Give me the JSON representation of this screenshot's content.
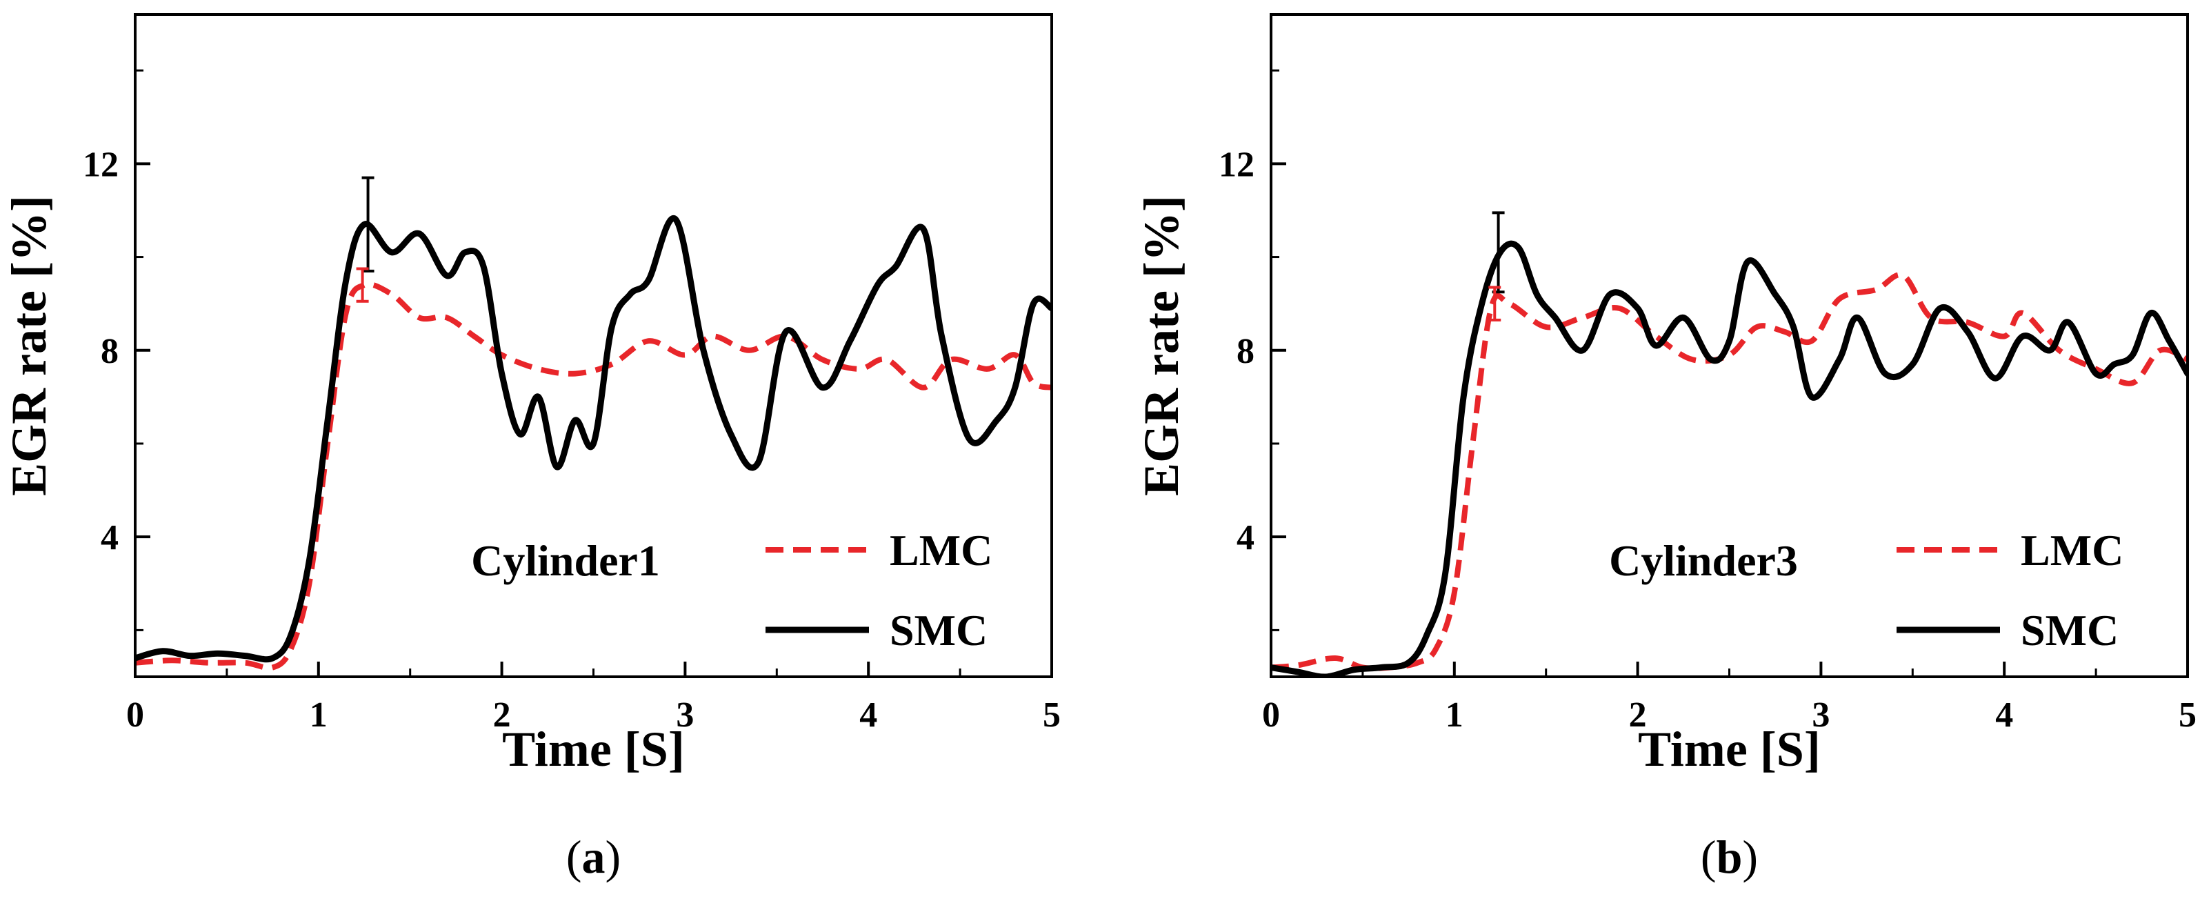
{
  "chart_data": [
    {
      "type": "line",
      "panel_label": "a",
      "annotation": "Cylinder1",
      "xlabel": "Time [S]",
      "ylabel": "EGR rate [%]",
      "xlim": [
        0,
        5
      ],
      "ylim": [
        1,
        15.2
      ],
      "xticks": [
        0,
        1,
        2,
        3,
        4,
        5
      ],
      "yticks": [
        4,
        8,
        12
      ],
      "grid": false,
      "legend_position": "bottom-right",
      "series": [
        {
          "name": "LMC",
          "color": "#e8262a",
          "style": "dashed",
          "x": [
            0,
            0.2,
            0.4,
            0.6,
            0.75,
            0.85,
            0.95,
            1.05,
            1.15,
            1.25,
            1.4,
            1.55,
            1.7,
            1.85,
            2.0,
            2.2,
            2.4,
            2.6,
            2.8,
            3.0,
            3.15,
            3.35,
            3.55,
            3.75,
            3.95,
            4.1,
            4.3,
            4.45,
            4.65,
            4.8,
            4.9,
            5.0
          ],
          "y": [
            1.3,
            1.35,
            1.3,
            1.3,
            1.2,
            1.6,
            3.0,
            6.0,
            8.8,
            9.4,
            9.2,
            8.7,
            8.7,
            8.3,
            7.9,
            7.6,
            7.5,
            7.7,
            8.2,
            7.9,
            8.3,
            8.0,
            8.3,
            7.8,
            7.6,
            7.8,
            7.2,
            7.8,
            7.6,
            7.9,
            7.3,
            7.2
          ]
        },
        {
          "name": "SMC",
          "color": "#000000",
          "style": "solid",
          "x": [
            0,
            0.15,
            0.3,
            0.45,
            0.6,
            0.75,
            0.85,
            0.95,
            1.05,
            1.15,
            1.25,
            1.4,
            1.55,
            1.7,
            1.8,
            1.9,
            2.0,
            2.1,
            2.2,
            2.3,
            2.4,
            2.5,
            2.6,
            2.7,
            2.8,
            2.95,
            3.1,
            3.25,
            3.4,
            3.55,
            3.75,
            3.9,
            4.05,
            4.15,
            4.3,
            4.4,
            4.55,
            4.7,
            4.8,
            4.9,
            5.0
          ],
          "y": [
            1.4,
            1.55,
            1.45,
            1.5,
            1.45,
            1.4,
            1.9,
            3.5,
            6.5,
            9.5,
            10.7,
            10.1,
            10.5,
            9.6,
            10.1,
            9.8,
            7.5,
            6.2,
            7.0,
            5.5,
            6.5,
            6.0,
            8.5,
            9.2,
            9.5,
            10.8,
            8.0,
            6.2,
            5.6,
            8.4,
            7.2,
            8.2,
            9.4,
            9.8,
            10.6,
            8.3,
            6.1,
            6.5,
            7.2,
            9.0,
            8.9
          ]
        }
      ],
      "error_bars": [
        {
          "series": "SMC",
          "x": 1.27,
          "y": 10.7,
          "error": 1.0
        },
        {
          "series": "LMC",
          "x": 1.24,
          "y": 9.4,
          "error": 0.35
        }
      ]
    },
    {
      "type": "line",
      "panel_label": "b",
      "annotation": "Cylinder3",
      "xlabel": "Time [S]",
      "ylabel": "EGR rate [%]",
      "xlim": [
        0,
        5
      ],
      "ylim": [
        1,
        15.2
      ],
      "xticks": [
        0,
        1,
        2,
        3,
        4,
        5
      ],
      "yticks": [
        4,
        8,
        12
      ],
      "grid": false,
      "legend_position": "bottom-right",
      "series": [
        {
          "name": "LMC",
          "color": "#e8262a",
          "style": "dashed",
          "x": [
            0,
            0.15,
            0.35,
            0.5,
            0.65,
            0.8,
            0.9,
            1.0,
            1.1,
            1.2,
            1.3,
            1.5,
            1.7,
            1.9,
            2.1,
            2.3,
            2.5,
            2.65,
            2.8,
            2.95,
            3.1,
            3.3,
            3.45,
            3.6,
            3.8,
            4.0,
            4.1,
            4.3,
            4.5,
            4.7,
            4.85,
            5.0
          ],
          "y": [
            1.2,
            1.25,
            1.4,
            1.2,
            1.2,
            1.3,
            1.6,
            2.8,
            6.0,
            8.9,
            9.0,
            8.5,
            8.7,
            8.9,
            8.3,
            7.8,
            7.9,
            8.5,
            8.4,
            8.2,
            9.1,
            9.3,
            9.6,
            8.7,
            8.6,
            8.3,
            8.8,
            8.0,
            7.6,
            7.3,
            8.0,
            7.8
          ]
        },
        {
          "name": "SMC",
          "color": "#000000",
          "style": "solid",
          "x": [
            0,
            0.15,
            0.3,
            0.45,
            0.6,
            0.75,
            0.85,
            0.95,
            1.05,
            1.15,
            1.25,
            1.35,
            1.45,
            1.55,
            1.7,
            1.85,
            2.0,
            2.1,
            2.25,
            2.4,
            2.5,
            2.6,
            2.75,
            2.85,
            2.95,
            3.1,
            3.2,
            3.35,
            3.5,
            3.65,
            3.8,
            3.95,
            4.1,
            4.25,
            4.35,
            4.5,
            4.6,
            4.7,
            4.8,
            4.9,
            5.0
          ],
          "y": [
            1.2,
            1.1,
            1.0,
            1.15,
            1.2,
            1.3,
            1.9,
            3.2,
            7.0,
            9.0,
            10.1,
            10.2,
            9.2,
            8.7,
            8.0,
            9.2,
            8.9,
            8.1,
            8.7,
            7.8,
            8.2,
            9.9,
            9.2,
            8.5,
            7.0,
            7.8,
            8.7,
            7.5,
            7.7,
            8.9,
            8.4,
            7.4,
            8.3,
            8.0,
            8.6,
            7.5,
            7.7,
            7.9,
            8.8,
            8.2,
            7.5
          ]
        }
      ],
      "error_bars": [
        {
          "series": "SMC",
          "x": 1.24,
          "y": 10.1,
          "error": 0.85
        },
        {
          "series": "LMC",
          "x": 1.22,
          "y": 9.0,
          "error": 0.35
        }
      ]
    }
  ]
}
